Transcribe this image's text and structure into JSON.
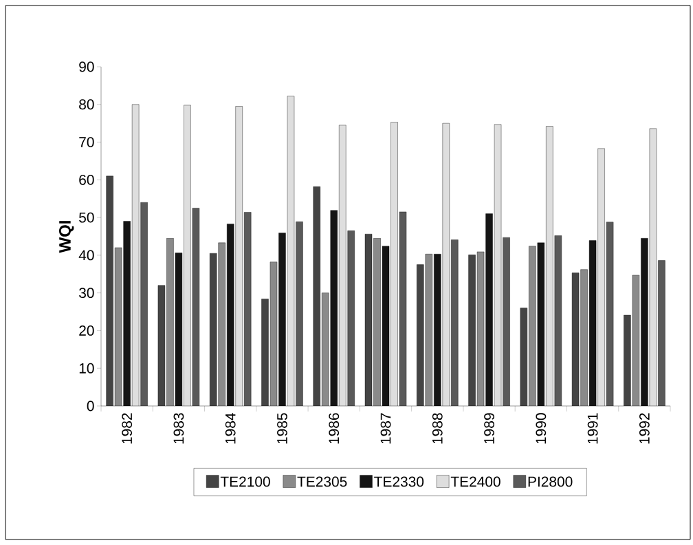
{
  "chart_data": {
    "type": "bar",
    "ylabel": "WQI",
    "categories": [
      "1982",
      "1983",
      "1984",
      "1985",
      "1986",
      "1987",
      "1988",
      "1989",
      "1990",
      "1991",
      "1992"
    ],
    "series": [
      {
        "name": "TE2100",
        "color": "#444444",
        "values": [
          61,
          32,
          40.5,
          28.4,
          58.2,
          45.6,
          37.5,
          40.1,
          26,
          35.3,
          24.1
        ]
      },
      {
        "name": "TE2305",
        "color": "#8a8a8a",
        "values": [
          42,
          44.5,
          43.3,
          38.2,
          30,
          44.5,
          40.3,
          40.9,
          42.4,
          36.2,
          34.7
        ]
      },
      {
        "name": "TE2330",
        "color": "#151515",
        "values": [
          49,
          40.6,
          48.3,
          45.9,
          51.9,
          42.4,
          40.3,
          51,
          43.3,
          43.9,
          44.5
        ]
      },
      {
        "name": "TE2400",
        "color": "#dedede",
        "values": [
          80,
          79.8,
          79.5,
          82.2,
          74.5,
          75.3,
          75,
          74.7,
          74.2,
          68.3,
          73.6
        ]
      },
      {
        "name": "PI2800",
        "color": "#5a5a5a",
        "values": [
          54,
          52.5,
          51.4,
          48.9,
          46.5,
          51.5,
          44.1,
          44.7,
          45.2,
          48.8,
          38.6
        ]
      }
    ],
    "ylim": [
      0,
      90
    ],
    "yticks": [
      0,
      10,
      20,
      30,
      40,
      50,
      60,
      70,
      80,
      90
    ],
    "legend": "bottom"
  }
}
